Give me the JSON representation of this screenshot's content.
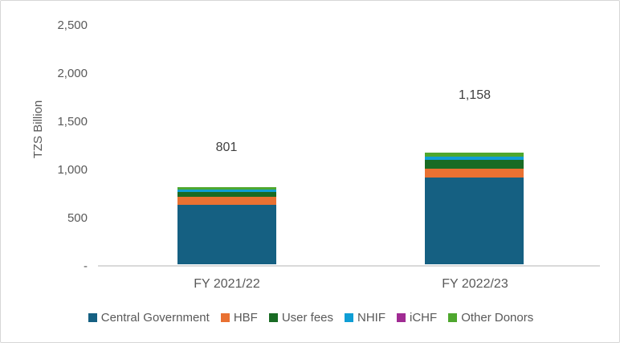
{
  "chart_data": {
    "type": "bar",
    "stacked": true,
    "title": "",
    "xlabel": "",
    "ylabel": "TZS Billion",
    "ylim": [
      0,
      2500
    ],
    "grid": false,
    "legend_position": "bottom",
    "categories": [
      "FY 2021/22",
      "FY 2022/23"
    ],
    "series": [
      {
        "name": "Central Government",
        "color": "#156082",
        "values": [
          615,
          902
        ]
      },
      {
        "name": "HBF",
        "color": "#E97132",
        "values": [
          88,
          89
        ]
      },
      {
        "name": "User fees",
        "color": "#196B24",
        "values": [
          50,
          91
        ]
      },
      {
        "name": "NHIF",
        "color": "#0F9ED5",
        "values": [
          24,
          38
        ]
      },
      {
        "name": "iCHF",
        "color": "#A02B93",
        "values": [
          0,
          0
        ]
      },
      {
        "name": "Other Donors",
        "color": "#4EA72E",
        "values": [
          24,
          38
        ]
      }
    ],
    "totals": [
      801,
      1158
    ],
    "totals_display": [
      "801",
      "1,158"
    ],
    "y_ticks": [
      {
        "label": "2,500",
        "value": 2500
      },
      {
        "label": "2,000",
        "value": 2000
      },
      {
        "label": "1,500",
        "value": 1500
      },
      {
        "label": "1,000",
        "value": 1000
      },
      {
        "label": "500",
        "value": 500
      },
      {
        "label": "-",
        "value": 0
      }
    ],
    "colors": {
      "axis_line": "#d9d9d9",
      "axis_text": "#595959",
      "data_label_text": "#404040"
    }
  }
}
